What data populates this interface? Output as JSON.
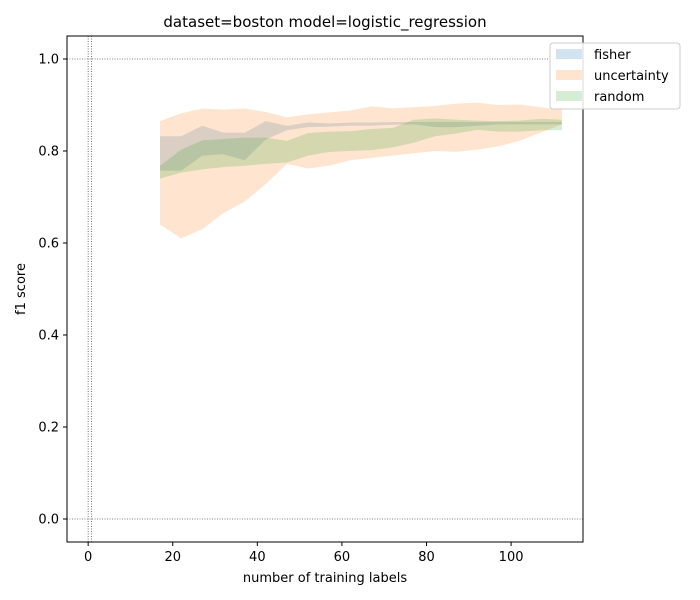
{
  "chart_data": {
    "type": "area",
    "title": "dataset=boston model=logistic_regression",
    "xlabel": "number of training labels",
    "ylabel": "f1 score",
    "xlim": [
      -5,
      117
    ],
    "ylim": [
      -0.05,
      1.05
    ],
    "xticks": [
      0,
      20,
      40,
      60,
      80,
      100
    ],
    "yticks": [
      0.0,
      0.2,
      0.4,
      0.6,
      0.8,
      1.0
    ],
    "reference_lines": {
      "x": [
        0,
        0.8
      ],
      "y": [
        0.0,
        1.0
      ]
    },
    "grid": false,
    "legend_placement": "top-right",
    "x": [
      17,
      22,
      27,
      32,
      37,
      42,
      47,
      52,
      57,
      62,
      67,
      72,
      77,
      82,
      87,
      92,
      97,
      102,
      107,
      112
    ],
    "series": [
      {
        "name": "fisher",
        "color": "#1f77b4",
        "lower": [
          0.757,
          0.757,
          0.79,
          0.793,
          0.78,
          0.825,
          0.845,
          0.852,
          0.853,
          0.855,
          0.855,
          0.857,
          0.858,
          0.852,
          0.852,
          0.855,
          0.858,
          0.858,
          0.858,
          0.858
        ],
        "upper": [
          0.832,
          0.832,
          0.855,
          0.84,
          0.84,
          0.865,
          0.855,
          0.862,
          0.86,
          0.862,
          0.862,
          0.863,
          0.863,
          0.863,
          0.863,
          0.863,
          0.863,
          0.863,
          0.863,
          0.863
        ]
      },
      {
        "name": "uncertainty",
        "color": "#ff7f0e",
        "lower": [
          0.64,
          0.61,
          0.63,
          0.665,
          0.69,
          0.728,
          0.772,
          0.762,
          0.768,
          0.78,
          0.785,
          0.79,
          0.795,
          0.8,
          0.798,
          0.803,
          0.81,
          0.822,
          0.84,
          0.858
        ],
        "upper": [
          0.865,
          0.882,
          0.892,
          0.89,
          0.892,
          0.885,
          0.873,
          0.88,
          0.884,
          0.888,
          0.897,
          0.893,
          0.895,
          0.898,
          0.903,
          0.905,
          0.9,
          0.901,
          0.895,
          0.89
        ]
      },
      {
        "name": "random",
        "color": "#2ca02c",
        "lower": [
          0.74,
          0.753,
          0.76,
          0.765,
          0.768,
          0.772,
          0.775,
          0.79,
          0.798,
          0.8,
          0.802,
          0.808,
          0.818,
          0.832,
          0.838,
          0.846,
          0.842,
          0.842,
          0.845,
          0.845
        ],
        "upper": [
          0.768,
          0.803,
          0.823,
          0.826,
          0.829,
          0.829,
          0.822,
          0.839,
          0.842,
          0.843,
          0.848,
          0.85,
          0.868,
          0.871,
          0.868,
          0.866,
          0.865,
          0.866,
          0.87,
          0.868
        ]
      }
    ]
  }
}
